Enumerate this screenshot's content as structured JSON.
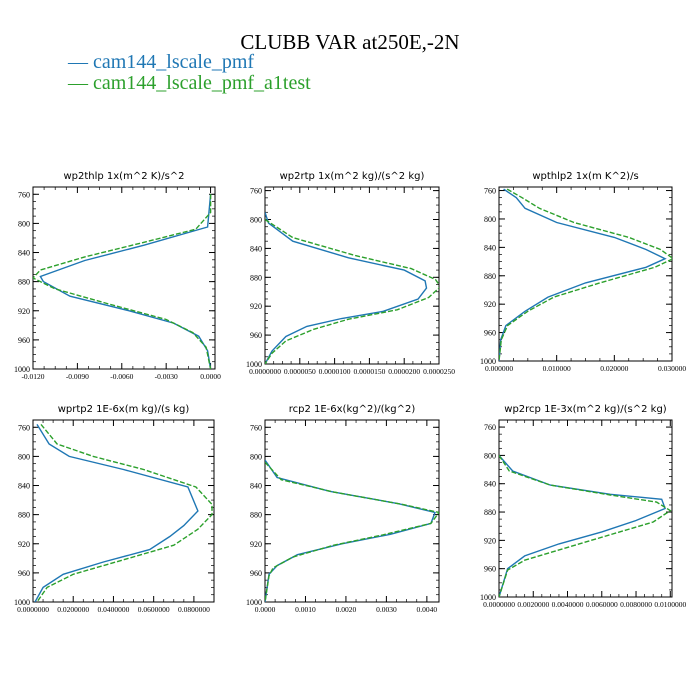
{
  "figure": {
    "title": "CLUBB VAR at250E,-2N",
    "legend": [
      {
        "label": "cam144_lscale_pmf",
        "color": "#1f77b4"
      },
      {
        "label": "cam144_lscale_pmf_a1test",
        "color": "#2ca02c"
      }
    ]
  },
  "chart_data": [
    {
      "type": "line",
      "title": "wp2thlp  1x(m^2 K)/s^2",
      "ylim": [
        1000,
        750
      ],
      "y_ticks": [
        760,
        800,
        840,
        880,
        920,
        960,
        1000
      ],
      "xlim": [
        -0.012,
        0.0003
      ],
      "x_ticks": [
        -0.012,
        -0.009,
        -0.006,
        -0.003,
        0
      ],
      "x_tick_labels": [
        "-0.0120",
        "-0.0090",
        "-0.0060",
        "-0.0030",
        "0.0000"
      ],
      "series": [
        {
          "name": "cam144_lscale_pmf",
          "color": "#1f77b4",
          "dashed": false,
          "points": [
            [
              0.0,
              760
            ],
            [
              -0.0002,
              805
            ],
            [
              -0.0045,
              830
            ],
            [
              -0.0085,
              851
            ],
            [
              -0.0115,
              873
            ],
            [
              -0.0113,
              880
            ],
            [
              -0.0095,
              900
            ],
            [
              -0.0055,
              920
            ],
            [
              -0.0025,
              937
            ],
            [
              -0.0008,
              955
            ],
            [
              -0.0002,
              975
            ],
            [
              0.0,
              1000
            ]
          ]
        },
        {
          "name": "cam144_lscale_pmf_a1test",
          "color": "#2ca02c",
          "dashed": true,
          "points": [
            [
              0.0,
              760
            ],
            [
              0.0,
              785
            ],
            [
              -0.001,
              808
            ],
            [
              -0.0045,
              826
            ],
            [
              -0.0085,
              846
            ],
            [
              -0.0115,
              864
            ],
            [
              -0.012,
              875
            ],
            [
              -0.0105,
              890
            ],
            [
              -0.007,
              910
            ],
            [
              -0.003,
              932
            ],
            [
              -0.0012,
              950
            ],
            [
              -0.0003,
              970
            ],
            [
              0.0,
              1000
            ]
          ]
        }
      ]
    },
    {
      "type": "line",
      "title": "wp2rtp  1x(m^2 kg)/(s^2 kg)",
      "ylim": [
        1000,
        755
      ],
      "y_ticks": [
        760,
        800,
        840,
        880,
        920,
        960,
        1000
      ],
      "xlim": [
        0,
        2.5e-05
      ],
      "x_ticks": [
        0,
        5e-06,
        1e-05,
        1.5e-05,
        2e-05,
        2.5e-05
      ],
      "x_tick_labels": [
        "0.0000000",
        "0.0000050",
        "0.0000100",
        "0.0000150",
        "0.0000200",
        "0.0000250"
      ],
      "series": [
        {
          "name": "cam144_lscale_pmf",
          "color": "#1f77b4",
          "dashed": false,
          "points": [
            [
              0.0,
              790
            ],
            [
              5e-07,
              805
            ],
            [
              4e-06,
              830
            ],
            [
              1.2e-05,
              853
            ],
            [
              2e-05,
              870
            ],
            [
              2.3e-05,
              885
            ],
            [
              2.32e-05,
              895
            ],
            [
              2.2e-05,
              910
            ],
            [
              1.7e-05,
              927
            ],
            [
              1.1e-05,
              937
            ],
            [
              6e-06,
              948
            ],
            [
              3e-06,
              962
            ],
            [
              1e-06,
              982
            ],
            [
              0.0,
              1000
            ]
          ]
        },
        {
          "name": "cam144_lscale_pmf_a1test",
          "color": "#2ca02c",
          "dashed": true,
          "points": [
            [
              0.0,
              800
            ],
            [
              4e-06,
              825
            ],
            [
              1.3e-05,
              850
            ],
            [
              2.1e-05,
              868
            ],
            [
              2.45e-05,
              883
            ],
            [
              2.52e-05,
              893
            ],
            [
              2.35e-05,
              908
            ],
            [
              1.9e-05,
              925
            ],
            [
              1.2e-05,
              938
            ],
            [
              7e-06,
              952
            ],
            [
              3e-06,
              968
            ],
            [
              1e-06,
              985
            ],
            [
              0.0,
              1000
            ]
          ]
        }
      ]
    },
    {
      "type": "line",
      "title": "wpthlp2  1x(m K^2)/s",
      "ylim": [
        1000,
        755
      ],
      "y_ticks": [
        760,
        800,
        840,
        880,
        920,
        960,
        1000
      ],
      "xlim": [
        0,
        0.03
      ],
      "x_ticks": [
        0,
        0.01,
        0.02,
        0.03
      ],
      "x_tick_labels": [
        "0.000000",
        "0.010000",
        "0.020000",
        "0.030000"
      ],
      "series": [
        {
          "name": "cam144_lscale_pmf",
          "color": "#1f77b4",
          "dashed": false,
          "points": [
            [
              0.0008,
              758
            ],
            [
              0.003,
              770
            ],
            [
              0.0045,
              785
            ],
            [
              0.01,
              805
            ],
            [
              0.02,
              826
            ],
            [
              0.0255,
              843
            ],
            [
              0.0288,
              856
            ],
            [
              0.0255,
              868
            ],
            [
              0.015,
              890
            ],
            [
              0.0085,
              910
            ],
            [
              0.0045,
              930
            ],
            [
              0.0012,
              950
            ],
            [
              0.0003,
              970
            ],
            [
              0.0,
              1000
            ]
          ]
        },
        {
          "name": "cam144_lscale_pmf_a1test",
          "color": "#2ca02c",
          "dashed": true,
          "points": [
            [
              0.0014,
              758
            ],
            [
              0.004,
              770
            ],
            [
              0.007,
              785
            ],
            [
              0.013,
              805
            ],
            [
              0.0225,
              826
            ],
            [
              0.028,
              843
            ],
            [
              0.0302,
              856
            ],
            [
              0.027,
              868
            ],
            [
              0.0175,
              890
            ],
            [
              0.0095,
              910
            ],
            [
              0.005,
              930
            ],
            [
              0.0015,
              950
            ],
            [
              0.0004,
              970
            ],
            [
              0.0,
              1000
            ]
          ]
        }
      ]
    },
    {
      "type": "line",
      "title": "wprtp2  1E-6x(m kg)/(s kg)",
      "ylim": [
        1000,
        750
      ],
      "y_ticks": [
        760,
        800,
        840,
        880,
        920,
        960,
        1000
      ],
      "xlim": [
        0,
        0.09
      ],
      "x_ticks": [
        0,
        0.02,
        0.04,
        0.06,
        0.08
      ],
      "x_tick_labels": [
        "0.0000000",
        "0.0200000",
        "0.0400000",
        "0.0600000",
        "0.0800000"
      ],
      "series": [
        {
          "name": "cam144_lscale_pmf",
          "color": "#1f77b4",
          "dashed": false,
          "points": [
            [
              0.002,
              756
            ],
            [
              0.008,
              783
            ],
            [
              0.018,
              800
            ],
            [
              0.045,
              818
            ],
            [
              0.077,
              842
            ],
            [
              0.082,
              875
            ],
            [
              0.075,
              895
            ],
            [
              0.068,
              910
            ],
            [
              0.058,
              928
            ],
            [
              0.035,
              945
            ],
            [
              0.015,
              962
            ],
            [
              0.005,
              980
            ],
            [
              0.001,
              1000
            ]
          ]
        },
        {
          "name": "cam144_lscale_pmf_a1test",
          "color": "#2ca02c",
          "dashed": true,
          "points": [
            [
              0.004,
              756
            ],
            [
              0.012,
              783
            ],
            [
              0.03,
              800
            ],
            [
              0.055,
              818
            ],
            [
              0.081,
              842
            ],
            [
              0.089,
              866
            ],
            [
              0.089,
              880
            ],
            [
              0.082,
              900
            ],
            [
              0.07,
              922
            ],
            [
              0.045,
              942
            ],
            [
              0.02,
              962
            ],
            [
              0.007,
              980
            ],
            [
              0.002,
              1000
            ]
          ]
        }
      ]
    },
    {
      "type": "line",
      "title": "rcp2  1E-6x(kg^2)/(kg^2)",
      "ylim": [
        1000,
        750
      ],
      "y_ticks": [
        760,
        800,
        840,
        880,
        920,
        960,
        1000
      ],
      "xlim": [
        0,
        0.0043
      ],
      "x_ticks": [
        0,
        0.001,
        0.002,
        0.003,
        0.004
      ],
      "x_tick_labels": [
        "0.0000",
        "0.0010",
        "0.0020",
        "0.0030",
        "0.0040"
      ],
      "series": [
        {
          "name": "cam144_lscale_pmf",
          "color": "#1f77b4",
          "dashed": false,
          "points": [
            [
              0.0,
              805
            ],
            [
              0.0003,
              829
            ],
            [
              0.0016,
              848
            ],
            [
              0.0033,
              865
            ],
            [
              0.0042,
              877
            ],
            [
              0.0041,
              892
            ],
            [
              0.0031,
              907
            ],
            [
              0.0019,
              920
            ],
            [
              0.0008,
              935
            ],
            [
              0.0003,
              950
            ],
            [
              0.0001,
              962
            ],
            [
              0.0,
              1000
            ]
          ]
        },
        {
          "name": "cam144_lscale_pmf_a1test",
          "color": "#2ca02c",
          "dashed": true,
          "points": [
            [
              0.0,
              808
            ],
            [
              0.0004,
              832
            ],
            [
              0.0017,
              849
            ],
            [
              0.0034,
              866
            ],
            [
              0.0043,
              877
            ],
            [
              0.0041,
              892
            ],
            [
              0.0029,
              908
            ],
            [
              0.0017,
              922
            ],
            [
              0.0007,
              938
            ],
            [
              0.0002,
              953
            ],
            [
              0.0001,
              964
            ],
            [
              0.0,
              1000
            ]
          ]
        }
      ]
    },
    {
      "type": "line",
      "title": "wp2rcp  1E-3x(m^2 kg)/(s^2 kg)",
      "ylim": [
        1000,
        750
      ],
      "y_ticks": [
        760,
        800,
        840,
        880,
        920,
        960,
        1000
      ],
      "xlim": [
        0,
        0.0101
      ],
      "x_ticks": [
        0,
        0.002,
        0.004,
        0.006,
        0.008,
        0.01
      ],
      "x_tick_labels": [
        "0.0000000",
        "0.0020000",
        "0.0040000",
        "0.0060000",
        "0.0080000",
        "0.0100000"
      ],
      "series": [
        {
          "name": "cam144_lscale_pmf",
          "color": "#1f77b4",
          "dashed": false,
          "points": [
            [
              0.0,
              800
            ],
            [
              0.0008,
              822
            ],
            [
              0.003,
              842
            ],
            [
              0.0065,
              855
            ],
            [
              0.0095,
              862
            ],
            [
              0.0097,
              875
            ],
            [
              0.008,
              892
            ],
            [
              0.006,
              908
            ],
            [
              0.0035,
              925
            ],
            [
              0.0015,
              942
            ],
            [
              0.0005,
              960
            ],
            [
              0.0,
              1000
            ]
          ]
        },
        {
          "name": "cam144_lscale_pmf_a1test",
          "color": "#2ca02c",
          "dashed": true,
          "points": [
            [
              0.0,
              800
            ],
            [
              0.0006,
              822
            ],
            [
              0.003,
              842
            ],
            [
              0.0065,
              856
            ],
            [
              0.0092,
              866
            ],
            [
              0.01,
              878
            ],
            [
              0.009,
              894
            ],
            [
              0.0065,
              912
            ],
            [
              0.004,
              930
            ],
            [
              0.0015,
              948
            ],
            [
              0.0005,
              962
            ],
            [
              0.0,
              1000
            ]
          ]
        }
      ]
    }
  ]
}
